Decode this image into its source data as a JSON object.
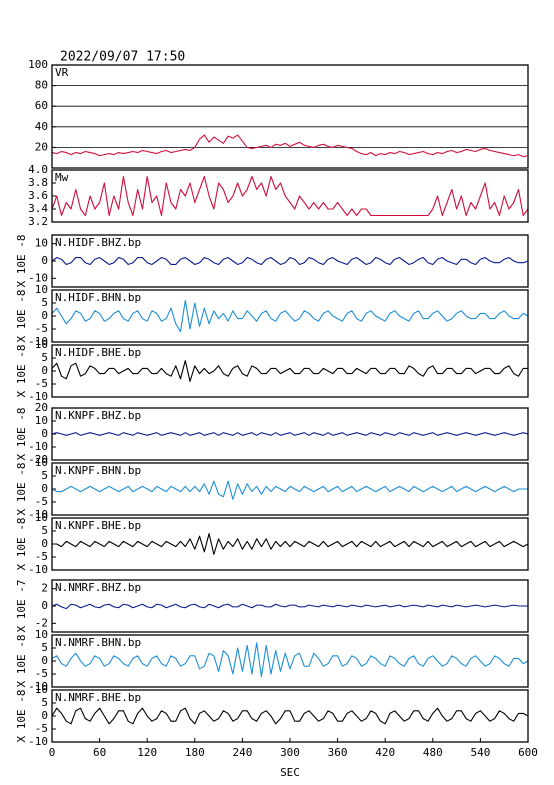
{
  "chart_data": {
    "type": "line",
    "title": "2022/09/07 17:50",
    "x": [
      0,
      6,
      12,
      18,
      24,
      30,
      36,
      42,
      48,
      54,
      60,
      66,
      72,
      78,
      84,
      90,
      96,
      102,
      108,
      114,
      120,
      126,
      132,
      138,
      144,
      150,
      156,
      162,
      168,
      174,
      180,
      186,
      192,
      198,
      204,
      210,
      216,
      222,
      228,
      234,
      240,
      246,
      252,
      258,
      264,
      270,
      276,
      282,
      288,
      294,
      300,
      306,
      312,
      318,
      324,
      330,
      336,
      342,
      348,
      354,
      360,
      366,
      372,
      378,
      384,
      390,
      396,
      402,
      408,
      414,
      420,
      426,
      432,
      438,
      444,
      450,
      456,
      462,
      468,
      474,
      480,
      486,
      492,
      498,
      504,
      510,
      516,
      522,
      528,
      534,
      540,
      546,
      552,
      558,
      564,
      570,
      576,
      582,
      588,
      594,
      600
    ],
    "xlim": [
      0,
      600
    ],
    "xticks": [
      0,
      60,
      120,
      180,
      240,
      300,
      360,
      420,
      480,
      540,
      600
    ],
    "xlabel": "SEC",
    "panels": [
      {
        "label": "VR",
        "ylim": [
          0,
          100
        ],
        "yticks": [
          20,
          40,
          60,
          80,
          100
        ],
        "grid": true,
        "color": "#d0103a",
        "values": [
          15,
          14,
          16,
          15,
          13,
          15,
          14,
          16,
          15,
          14,
          12,
          13,
          14,
          13,
          15,
          14,
          15,
          16,
          15,
          17,
          16,
          15,
          14,
          16,
          17,
          15,
          16,
          17,
          18,
          17,
          20,
          28,
          32,
          25,
          30,
          27,
          24,
          31,
          29,
          32,
          26,
          20,
          19,
          20,
          21,
          22,
          20,
          23,
          22,
          24,
          21,
          23,
          25,
          22,
          21,
          20,
          22,
          23,
          21,
          20,
          22,
          21,
          20,
          19,
          16,
          14,
          13,
          15,
          12,
          14,
          13,
          15,
          14,
          16,
          15,
          13,
          14,
          15,
          16,
          14,
          13,
          15,
          14,
          16,
          17,
          15,
          16,
          18,
          17,
          16,
          18,
          19,
          17,
          16,
          15,
          14,
          13,
          12,
          13,
          11,
          12
        ]
      },
      {
        "label": "Mw",
        "ylim": [
          3.2,
          4.0
        ],
        "yticks": [
          3.2,
          3.4,
          3.6,
          3.8,
          {
            "value": 4,
            "label": "4.0"
          }
        ],
        "grid": false,
        "color": "#d0103a",
        "values": [
          3.4,
          3.6,
          3.3,
          3.5,
          3.4,
          3.7,
          3.4,
          3.3,
          3.6,
          3.4,
          3.5,
          3.8,
          3.3,
          3.6,
          3.4,
          3.9,
          3.5,
          3.3,
          3.7,
          3.4,
          3.9,
          3.5,
          3.6,
          3.3,
          3.8,
          3.5,
          3.4,
          3.7,
          3.6,
          3.8,
          3.5,
          3.7,
          3.9,
          3.6,
          3.4,
          3.8,
          3.7,
          3.5,
          3.6,
          3.8,
          3.6,
          3.7,
          3.9,
          3.7,
          3.8,
          3.6,
          3.9,
          3.7,
          3.8,
          3.6,
          3.5,
          3.4,
          3.6,
          3.5,
          3.4,
          3.5,
          3.4,
          3.5,
          3.4,
          3.4,
          3.5,
          3.4,
          3.3,
          3.4,
          3.3,
          3.4,
          3.4,
          3.3,
          3.3,
          3.3,
          3.3,
          3.3,
          3.3,
          3.3,
          3.3,
          3.3,
          3.3,
          3.3,
          3.3,
          3.3,
          3.4,
          3.6,
          3.3,
          3.5,
          3.7,
          3.4,
          3.6,
          3.3,
          3.5,
          3.4,
          3.6,
          3.8,
          3.4,
          3.5,
          3.3,
          3.6,
          3.4,
          3.5,
          3.7,
          3.3,
          3.4
        ]
      },
      {
        "label": "N.HIDF.BHZ.bp",
        "ylabel": "X 10E -8",
        "ylim": [
          -15,
          15
        ],
        "yticks": [
          -10,
          0,
          10
        ],
        "color": "#0a1a8c",
        "values": [
          0,
          2,
          1,
          -2,
          -1,
          2,
          2,
          -1,
          -2,
          1,
          2,
          0,
          -2,
          -1,
          2,
          1,
          -2,
          -1,
          2,
          2,
          -1,
          -2,
          0,
          2,
          1,
          -2,
          -2,
          1,
          2,
          0,
          -2,
          -1,
          2,
          1,
          -1,
          -2,
          1,
          2,
          0,
          -2,
          -1,
          2,
          1,
          -1,
          -2,
          1,
          2,
          0,
          -2,
          -1,
          2,
          1,
          -2,
          -1,
          2,
          1,
          -1,
          -2,
          1,
          2,
          0,
          -1,
          -2,
          1,
          2,
          0,
          -2,
          -1,
          2,
          1,
          -1,
          -2,
          1,
          2,
          0,
          -2,
          -1,
          1,
          2,
          -1,
          -2,
          1,
          2,
          0,
          -1,
          -2,
          1,
          1,
          -1,
          -2,
          1,
          2,
          0,
          -1,
          -1,
          1,
          2,
          0,
          -1,
          -1,
          0
        ]
      },
      {
        "label": "N.HIDF.BHN.bp",
        "ylabel": "X 10E -8",
        "ylim": [
          -10,
          10
        ],
        "yticks": [
          -10,
          -5,
          0,
          5,
          10
        ],
        "color": "#1e8fd6",
        "values": [
          1,
          3,
          0,
          -3,
          -1,
          2,
          1,
          -2,
          -1,
          2,
          1,
          -2,
          -1,
          1,
          2,
          -1,
          -2,
          1,
          2,
          -1,
          -2,
          2,
          1,
          -2,
          -1,
          3,
          -3,
          -6,
          6,
          -5,
          5,
          -4,
          3,
          -3,
          2,
          -1,
          1,
          -2,
          2,
          -1,
          -1,
          2,
          0,
          -2,
          1,
          2,
          -1,
          -2,
          1,
          2,
          0,
          -2,
          -1,
          2,
          1,
          -1,
          -2,
          1,
          2,
          0,
          -1,
          -2,
          1,
          2,
          -1,
          -2,
          1,
          2,
          0,
          -1,
          -2,
          1,
          2,
          0,
          -1,
          -2,
          1,
          2,
          -1,
          -1,
          1,
          2,
          0,
          -2,
          -1,
          1,
          2,
          0,
          -1,
          -1,
          1,
          1,
          -1,
          -1,
          1,
          2,
          0,
          -1,
          -1,
          1,
          0
        ]
      },
      {
        "label": "N.HIDF.BHE.bp",
        "ylabel": "X 10E -8",
        "ylim": [
          -10,
          10
        ],
        "yticks": [
          -10,
          -5,
          0,
          5,
          10
        ],
        "color": "#000000",
        "values": [
          1,
          3,
          -2,
          -3,
          2,
          3,
          -2,
          -1,
          2,
          1,
          -1,
          -1,
          1,
          1,
          -1,
          0,
          1,
          -1,
          -1,
          1,
          1,
          -1,
          -1,
          1,
          -1,
          -2,
          2,
          -3,
          4,
          -4,
          2,
          -1,
          1,
          -1,
          0,
          2,
          -1,
          -2,
          1,
          2,
          -1,
          -2,
          2,
          1,
          -1,
          -1,
          1,
          1,
          -1,
          0,
          1,
          -1,
          -1,
          1,
          1,
          -1,
          -1,
          1,
          0,
          -1,
          1,
          1,
          -1,
          -1,
          1,
          0,
          -1,
          1,
          1,
          -1,
          -1,
          1,
          1,
          -1,
          -1,
          2,
          1,
          -1,
          -2,
          1,
          2,
          -1,
          -1,
          1,
          1,
          -1,
          -1,
          1,
          1,
          -1,
          0,
          1,
          1,
          -1,
          -1,
          1,
          2,
          -1,
          -2,
          1,
          1
        ]
      },
      {
        "label": "N.KNPF.BHZ.bp",
        "ylabel": "X 10E -8",
        "ylim": [
          -20,
          20
        ],
        "yticks": [
          -20,
          -10,
          0,
          10,
          20
        ],
        "color": "#0a1a8c",
        "values": [
          0,
          1,
          0,
          -1,
          0,
          1,
          -1,
          0,
          1,
          0,
          -1,
          0,
          1,
          0,
          -1,
          1,
          0,
          -1,
          1,
          0,
          -1,
          0,
          1,
          -1,
          0,
          1,
          0,
          -1,
          1,
          -1,
          0,
          1,
          -1,
          0,
          1,
          -1,
          1,
          0,
          -1,
          1,
          -1,
          0,
          1,
          -1,
          1,
          0,
          -1,
          1,
          -1,
          0,
          1,
          -1,
          0,
          1,
          -1,
          1,
          0,
          -1,
          1,
          -1,
          0,
          1,
          -1,
          0,
          1,
          0,
          -1,
          1,
          0,
          -1,
          1,
          0,
          -1,
          1,
          0,
          -1,
          1,
          0,
          -1,
          0,
          1,
          -1,
          0,
          1,
          0,
          -1,
          0,
          1,
          0,
          -1,
          0,
          1,
          0,
          -1,
          0,
          1,
          0,
          -1,
          0,
          1,
          0
        ]
      },
      {
        "label": "N.KNPF.BHN.bp",
        "ylabel": "X 10E -8",
        "ylim": [
          -10,
          10
        ],
        "yticks": [
          -10,
          -5,
          0,
          5,
          10
        ],
        "color": "#1e8fd6",
        "values": [
          0,
          -1,
          -1,
          0,
          1,
          0,
          -1,
          0,
          1,
          0,
          -1,
          0,
          1,
          0,
          -1,
          0,
          1,
          -1,
          0,
          1,
          0,
          -1,
          1,
          0,
          -1,
          1,
          0,
          -1,
          1,
          -1,
          1,
          -1,
          2,
          -2,
          3,
          -2,
          -3,
          3,
          -4,
          2,
          -2,
          2,
          -1,
          1,
          -2,
          1,
          -1,
          1,
          0,
          -1,
          1,
          0,
          -1,
          1,
          0,
          -1,
          0,
          1,
          -1,
          0,
          1,
          -1,
          0,
          1,
          -1,
          0,
          1,
          0,
          -1,
          0,
          1,
          -1,
          0,
          1,
          0,
          -1,
          1,
          0,
          -1,
          0,
          1,
          0,
          -1,
          0,
          1,
          -1,
          0,
          1,
          0,
          -1,
          0,
          1,
          0,
          -1,
          0,
          1,
          0,
          -1,
          0,
          0,
          0
        ]
      },
      {
        "label": "N.KNPF.BHE.bp",
        "ylabel": "X 10E -8",
        "ylim": [
          -10,
          10
        ],
        "yticks": [
          -10,
          -5,
          0,
          5,
          10
        ],
        "color": "#000000",
        "values": [
          0,
          0,
          -1,
          1,
          0,
          -1,
          1,
          0,
          -1,
          1,
          0,
          -1,
          1,
          0,
          -1,
          1,
          0,
          -1,
          1,
          0,
          -1,
          1,
          0,
          -1,
          1,
          0,
          -1,
          1,
          -1,
          2,
          -2,
          3,
          -3,
          4,
          -4,
          2,
          -2,
          1,
          -1,
          2,
          -2,
          1,
          -2,
          2,
          -1,
          2,
          -2,
          1,
          -1,
          1,
          -1,
          1,
          0,
          -1,
          1,
          0,
          -1,
          1,
          -1,
          0,
          1,
          -1,
          0,
          1,
          -1,
          1,
          0,
          -1,
          1,
          -1,
          0,
          1,
          -1,
          0,
          1,
          -1,
          1,
          0,
          -1,
          1,
          -1,
          0,
          1,
          -1,
          0,
          1,
          -1,
          0,
          1,
          -1,
          0,
          1,
          -1,
          0,
          1,
          -1,
          0,
          1,
          0,
          -1,
          0
        ]
      },
      {
        "label": "N.NMRF.BHZ.bp",
        "ylabel": "X 10E -7",
        "ylim": [
          -3,
          3
        ],
        "yticks": [
          -2,
          0,
          2
        ],
        "color": "#0a1a8c",
        "values": [
          0,
          0.2,
          -0.1,
          -0.3,
          0.2,
          0.1,
          -0.2,
          0,
          0.2,
          -0.1,
          -0.2,
          0.1,
          0.2,
          -0.1,
          -0.2,
          0.2,
          0.1,
          -0.2,
          0,
          0.2,
          -0.1,
          -0.2,
          0.2,
          0.1,
          -0.2,
          0,
          0.2,
          -0.1,
          -0.2,
          0.1,
          0.2,
          -0.1,
          -0.2,
          0.2,
          0,
          -0.2,
          0.1,
          0.2,
          -0.1,
          -0.1,
          0.2,
          0,
          -0.2,
          0.1,
          0.1,
          -0.1,
          -0.1,
          0.2,
          0,
          -0.1,
          0.1,
          0.1,
          -0.1,
          -0.1,
          0.1,
          0,
          -0.1,
          0.1,
          0,
          -0.1,
          0.1,
          0,
          -0.1,
          0.1,
          0,
          -0.1,
          0.1,
          0,
          -0.1,
          0,
          0.1,
          -0.1,
          0,
          0.1,
          -0.1,
          0,
          0.1,
          0,
          -0.1,
          0.1,
          0,
          -0.1,
          0.1,
          0,
          -0.1,
          0.1,
          0,
          -0.1,
          0,
          0.1,
          0,
          -0.1,
          0,
          0.1,
          0,
          -0.1,
          0,
          0.1,
          0,
          0,
          0
        ]
      },
      {
        "label": "N.NMRF.BHN.bp",
        "ylabel": "X 10E -8",
        "ylim": [
          -10,
          10
        ],
        "yticks": [
          -10,
          -5,
          0,
          5,
          10
        ],
        "color": "#1e8fd6",
        "values": [
          1,
          2,
          -1,
          -2,
          1,
          3,
          0,
          -2,
          -1,
          2,
          1,
          -2,
          -1,
          2,
          1,
          -1,
          -2,
          1,
          2,
          -1,
          -2,
          1,
          2,
          -1,
          -2,
          2,
          1,
          -2,
          -1,
          2,
          2,
          -3,
          -2,
          3,
          2,
          -4,
          4,
          2,
          -5,
          5,
          -4,
          6,
          -5,
          7,
          -6,
          6,
          -5,
          4,
          -4,
          3,
          -3,
          2,
          3,
          -2,
          -2,
          3,
          1,
          -2,
          -1,
          2,
          2,
          -2,
          -1,
          2,
          1,
          -2,
          -1,
          2,
          1,
          -1,
          -2,
          2,
          1,
          -1,
          -2,
          1,
          2,
          -1,
          -2,
          1,
          2,
          0,
          -2,
          -1,
          2,
          1,
          -1,
          -2,
          1,
          2,
          0,
          -2,
          -1,
          2,
          1,
          -1,
          -2,
          1,
          1,
          -1,
          0
        ]
      },
      {
        "label": "N.NMRF.BHE.bp",
        "ylabel": "X 10E -8",
        "ylim": [
          -10,
          10
        ],
        "yticks": [
          -10,
          -5,
          0,
          5,
          10
        ],
        "color": "#000000",
        "values": [
          0,
          3,
          1,
          -2,
          -3,
          2,
          3,
          -1,
          -2,
          1,
          3,
          0,
          -3,
          -1,
          2,
          2,
          -2,
          -3,
          1,
          3,
          0,
          -2,
          -1,
          2,
          1,
          -2,
          -2,
          2,
          3,
          -1,
          -3,
          1,
          2,
          0,
          -2,
          -1,
          2,
          1,
          -2,
          -1,
          2,
          2,
          -1,
          -2,
          1,
          2,
          0,
          -3,
          -1,
          2,
          2,
          -2,
          -2,
          1,
          2,
          0,
          -2,
          -1,
          2,
          1,
          -2,
          -2,
          1,
          2,
          0,
          -2,
          -1,
          2,
          1,
          -2,
          -3,
          1,
          2,
          0,
          -2,
          -1,
          2,
          2,
          -1,
          -2,
          1,
          3,
          0,
          -2,
          -1,
          2,
          2,
          -1,
          -2,
          1,
          2,
          0,
          -2,
          -1,
          2,
          1,
          -1,
          -2,
          1,
          1,
          0
        ]
      }
    ]
  }
}
